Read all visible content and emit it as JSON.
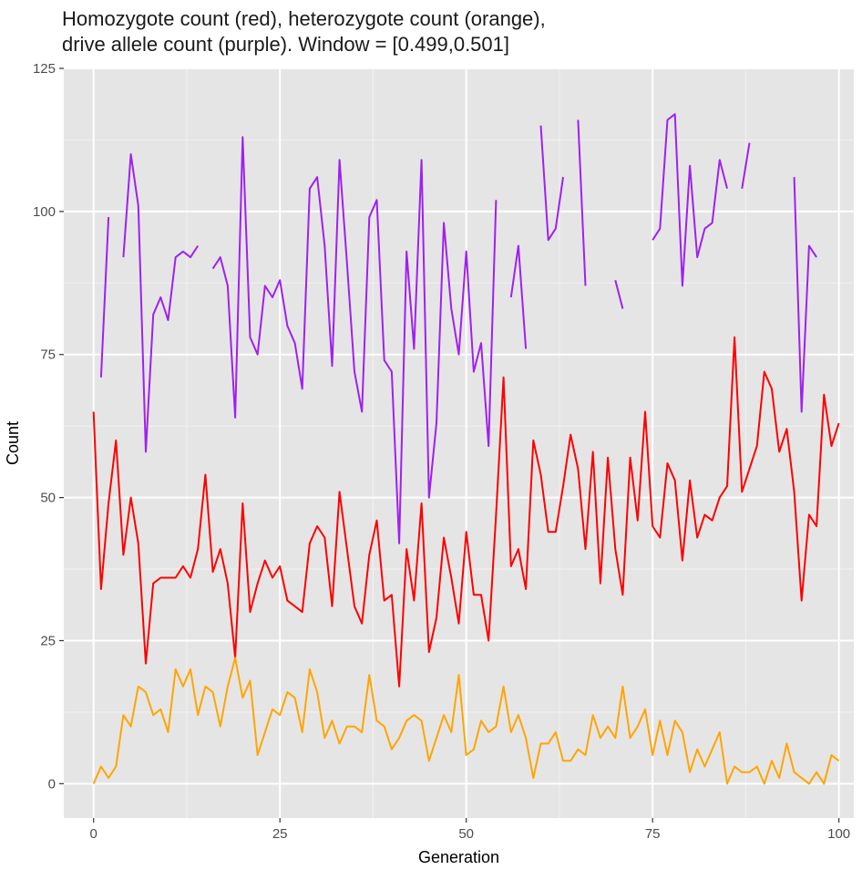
{
  "chart_data": {
    "type": "line",
    "title_lines": [
      "Homozygote count (red), heterozygote count (orange),",
      "drive allele count (purple). Window = [0.499,0.501]"
    ],
    "xlabel": "Generation",
    "ylabel": "Count",
    "xlim": [
      -4,
      102
    ],
    "ylim": [
      -6,
      125
    ],
    "xticks": [
      0,
      25,
      50,
      75,
      100
    ],
    "yticks": [
      0,
      25,
      50,
      75,
      100,
      125
    ],
    "grid": true,
    "legend": "none",
    "x": [
      0,
      1,
      2,
      3,
      4,
      5,
      6,
      7,
      8,
      9,
      10,
      11,
      12,
      13,
      14,
      15,
      16,
      17,
      18,
      19,
      20,
      21,
      22,
      23,
      24,
      25,
      26,
      27,
      28,
      29,
      30,
      31,
      32,
      33,
      34,
      35,
      36,
      37,
      38,
      39,
      40,
      41,
      42,
      43,
      44,
      45,
      46,
      47,
      48,
      49,
      50,
      51,
      52,
      53,
      54,
      55,
      56,
      57,
      58,
      59,
      60,
      61,
      62,
      63,
      64,
      65,
      66,
      67,
      68,
      69,
      70,
      71,
      72,
      73,
      74,
      75,
      76,
      77,
      78,
      79,
      80,
      81,
      82,
      83,
      84,
      85,
      86,
      87,
      88,
      89,
      90,
      91,
      92,
      93,
      94,
      95,
      96,
      97,
      98,
      99,
      100
    ],
    "series": [
      {
        "name": "Homozygote count",
        "color": "#ff0000",
        "values": [
          65,
          34,
          49,
          60,
          40,
          50,
          42,
          21,
          35,
          36,
          36,
          36,
          38,
          36,
          41,
          54,
          37,
          41,
          35,
          22,
          49,
          30,
          35,
          39,
          36,
          38,
          32,
          31,
          30,
          42,
          45,
          43,
          31,
          51,
          41,
          31,
          28,
          40,
          46,
          32,
          33,
          17,
          41,
          32,
          49,
          23,
          29,
          43,
          36,
          28,
          44,
          33,
          33,
          25,
          47,
          71,
          38,
          41,
          34,
          60,
          54,
          44,
          44,
          52,
          61,
          55,
          41,
          58,
          35,
          57,
          41,
          33,
          57,
          46,
          65,
          45,
          43,
          56,
          53,
          39,
          53,
          43,
          47,
          46,
          50,
          52,
          78,
          51,
          55,
          59,
          72,
          69,
          58,
          62,
          51,
          32,
          47,
          45,
          68,
          59,
          63
        ]
      },
      {
        "name": "Heterozygote count",
        "color": "#ffa500",
        "values": [
          0,
          3,
          1,
          3,
          12,
          10,
          17,
          16,
          12,
          13,
          9,
          20,
          17,
          20,
          12,
          17,
          16,
          10,
          17,
          22,
          15,
          18,
          5,
          9,
          13,
          12,
          16,
          15,
          9,
          20,
          16,
          8,
          11,
          7,
          10,
          10,
          9,
          19,
          11,
          10,
          6,
          8,
          11,
          12,
          11,
          4,
          8,
          12,
          9,
          19,
          5,
          6,
          11,
          9,
          10,
          17,
          9,
          12,
          8,
          1,
          7,
          7,
          9,
          4,
          4,
          6,
          5,
          12,
          8,
          10,
          8,
          17,
          8,
          10,
          13,
          5,
          11,
          5,
          11,
          9,
          2,
          6,
          3,
          6,
          9,
          0,
          3,
          2,
          2,
          3,
          0,
          4,
          1,
          7,
          2,
          1,
          0,
          2,
          0,
          5,
          4
        ]
      },
      {
        "name": "Drive allele count",
        "color": "#a020f0",
        "values": [
          null,
          71,
          99,
          null,
          92,
          110,
          101,
          58,
          82,
          85,
          81,
          92,
          93,
          92,
          94,
          null,
          90,
          92,
          87,
          64,
          113,
          78,
          75,
          87,
          85,
          88,
          80,
          77,
          69,
          104,
          106,
          94,
          73,
          109,
          91,
          72,
          65,
          99,
          102,
          74,
          72,
          42,
          93,
          76,
          109,
          50,
          63,
          98,
          83,
          75,
          93,
          72,
          77,
          59,
          102,
          null,
          85,
          94,
          76,
          null,
          115,
          95,
          97,
          106,
          null,
          116,
          87,
          null,
          null,
          null,
          88,
          83,
          null,
          null,
          null,
          95,
          97,
          116,
          117,
          87,
          108,
          92,
          97,
          98,
          109,
          104,
          null,
          104,
          112,
          null,
          null,
          null,
          null,
          null,
          106,
          65,
          94,
          92,
          null,
          null,
          null
        ]
      }
    ]
  }
}
